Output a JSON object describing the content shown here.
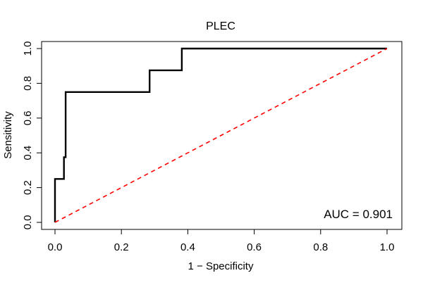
{
  "chart_data": {
    "type": "line",
    "title": "PLEC",
    "xlabel": "1 − Specificity",
    "ylabel": "Sensitivity",
    "xlim": [
      0,
      1
    ],
    "ylim": [
      0,
      1
    ],
    "x_ticks": [
      "0.0",
      "0.2",
      "0.4",
      "0.6",
      "0.8",
      "1.0"
    ],
    "y_ticks": [
      "0.0",
      "0.2",
      "0.4",
      "0.6",
      "0.8",
      "1.0"
    ],
    "grid": false,
    "annotation": "AUC = 0.901",
    "series": [
      {
        "name": "ROC curve",
        "color": "#000000",
        "style": "solid",
        "x": [
          0,
          0,
          0.003,
          0.027,
          0.027,
          0.032,
          0.032,
          0.285,
          0.285,
          0.382,
          0.382,
          1.0
        ],
        "y": [
          0,
          0.25,
          0.25,
          0.25,
          0.375,
          0.375,
          0.75,
          0.75,
          0.875,
          0.875,
          1.0,
          1.0
        ]
      },
      {
        "name": "Chance line",
        "color": "#ff0000",
        "style": "dashed",
        "x": [
          0,
          1
        ],
        "y": [
          0,
          1
        ]
      }
    ]
  }
}
